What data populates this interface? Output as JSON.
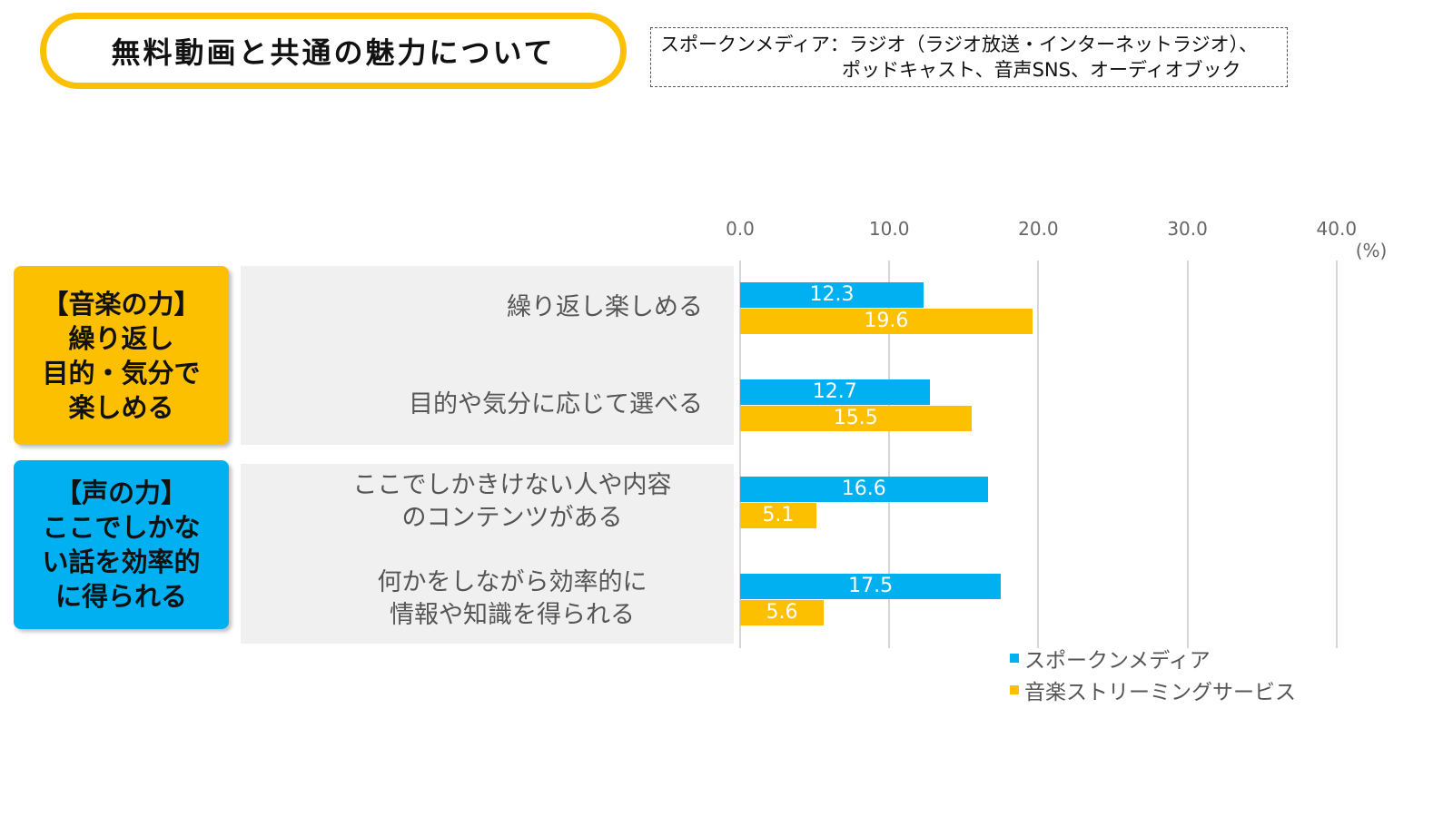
{
  "title": "無料動画と共通の魅力について",
  "note": {
    "line1": "スポークンメディア：ラジオ（ラジオ放送・インターネットラジオ）、",
    "line2": "ポッドキャスト、音声SNS、オーディオブック"
  },
  "categories": [
    {
      "label": "【音楽の力】\n繰り返し\n目的・気分で\n楽しめる",
      "color": "#fcc000"
    },
    {
      "label": "【声の力】\nここでしかな\nい話を効率的\nに得られる",
      "color": "#00b0f0"
    }
  ],
  "chart_data": {
    "type": "bar",
    "orientation": "horizontal",
    "categories": [
      "繰り返し楽しめる",
      "目的や気分に応じて選べる",
      "ここでしかきけない人や内容\nのコンテンツがある",
      "何かをしながら効率的に\n情報や知識を得られる"
    ],
    "series": [
      {
        "name": "スポークンメディア",
        "color": "#00b0f0",
        "values": [
          12.3,
          12.7,
          16.6,
          17.5
        ]
      },
      {
        "name": "音楽ストリーミングサービス",
        "color": "#fcc000",
        "values": [
          19.6,
          15.5,
          5.1,
          5.6
        ]
      }
    ],
    "xlim": [
      0,
      40
    ],
    "ticks": [
      "0.0",
      "10.0",
      "20.0",
      "30.0",
      "40.0"
    ],
    "unit": "(%)",
    "grid": true,
    "legend": "bottom-right"
  }
}
